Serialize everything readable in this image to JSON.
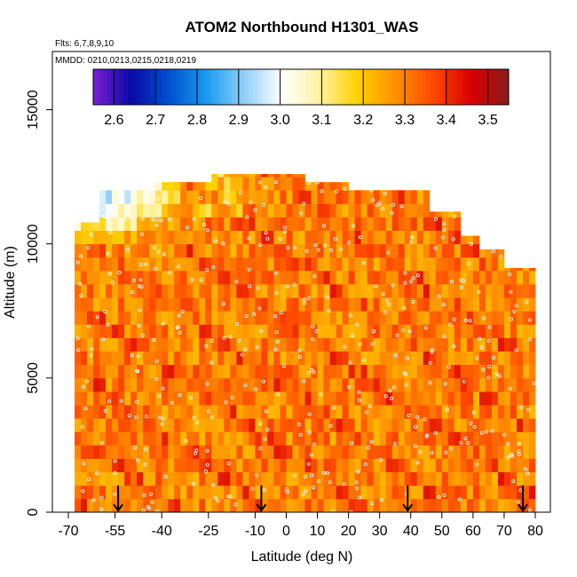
{
  "chart_data": {
    "type": "heatmap",
    "title": "ATOM2 Northbound H1301_WAS",
    "flights_label": "Flts: 6,7,8,9,10",
    "dates_label": "MMDD: 0210,0213,0215,0218,0219",
    "xlabel": "Latitude (deg N)",
    "ylabel": "Altitude (m)",
    "xlim": [
      -70,
      84
    ],
    "ylim": [
      0,
      17500
    ],
    "x_ticks": [
      -70,
      -55,
      -40,
      -25,
      -10,
      0,
      10,
      20,
      30,
      40,
      50,
      60,
      70,
      80
    ],
    "y_ticks": [
      0,
      5000,
      10000,
      15000
    ],
    "colorbar": {
      "min": 2.55,
      "max": 3.55,
      "ticks": [
        2.6,
        2.7,
        2.8,
        2.9,
        3.0,
        3.1,
        3.2,
        3.3,
        3.4,
        3.5
      ],
      "colors": [
        "#7a1fd6",
        "#0a0aa6",
        "#0050d0",
        "#1a9af0",
        "#8fd0f8",
        "#ffffff",
        "#fff2a0",
        "#ffd000",
        "#ff9000",
        "#ff4a00",
        "#d80000",
        "#8a1a1a"
      ]
    },
    "profile_markers_lat": [
      -54,
      -8,
      39,
      76
    ],
    "heatmap": {
      "lat_range": [
        -68,
        80
      ],
      "alt_range": [
        0,
        13000
      ],
      "summary": "Mixing ratio mostly 3.25-3.45 throughout the troposphere; lower values (~2.9-3.0) near 10000-12000 m at southern latitudes (-65 to -30 deg); maximum observed altitude decreases from ~12000 m near 0 deg to ~9000 m at high northern latitudes."
    }
  }
}
